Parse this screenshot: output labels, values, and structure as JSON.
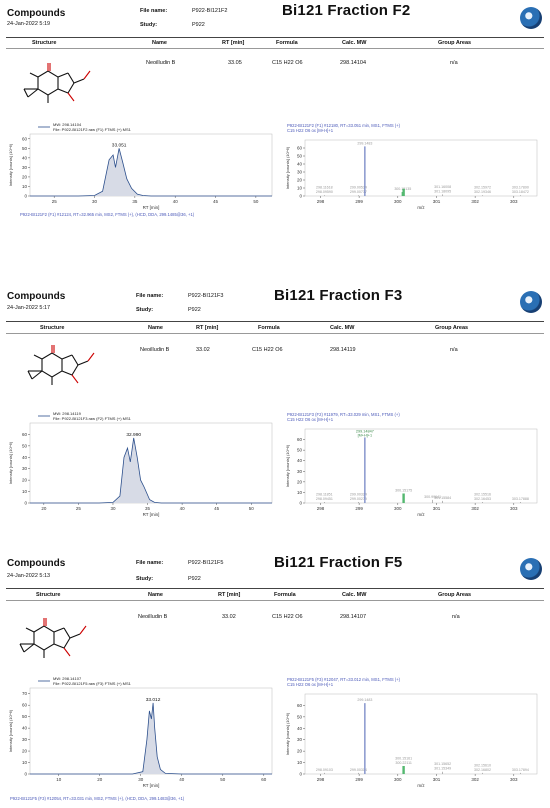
{
  "header_labels": {
    "file_name": "File name:",
    "study": "Study:"
  },
  "table_headers": [
    "Structure",
    "Name",
    "RT [min]",
    "Formula",
    "Calc. MW",
    "Group Areas"
  ],
  "panels": [
    {
      "title": "Compounds",
      "date": "24-Jan-2022 5:19",
      "file_name": "P922-BI121F2",
      "study": "P922",
      "fraction": "Bi121 Fraction F2",
      "row": {
        "name": "Neoilludin B",
        "rt": "33.05",
        "formula": "C15 H22 O6",
        "mw": "298.14104",
        "group_areas": "n/a"
      }
    },
    {
      "title": "Compounds",
      "date": "24-Jan-2022 5:17",
      "file_name": "P922-BI121F3",
      "study": "P922",
      "fraction": "Bi121 Fraction F3",
      "row": {
        "name": "Neoilludin B",
        "rt": "33.02",
        "formula": "C15 H22 O6",
        "mw": "298.14119",
        "group_areas": "n/a"
      }
    },
    {
      "title": "Compounds",
      "date": "24-Jan-2022 5:13",
      "file_name": "P922-BI121F5",
      "study": "P922",
      "fraction": "Bi121 Fraction F5",
      "row": {
        "name": "Neoilludin B",
        "rt": "33.02",
        "formula": "C15 H22 O6",
        "mw": "298.14107",
        "group_areas": "n/a"
      }
    }
  ],
  "chart_data": [
    {
      "type": "line",
      "panel": "F2 chromatogram",
      "legend": [
        "MW: 298.14104",
        "File: P922-BI121F2.raw (F1) FTMS (+) MS1"
      ],
      "peak_label": "33.051",
      "xlabel": "RT [min]",
      "ylabel": "Intensity [counts] (10^6)",
      "xlim": [
        22,
        52
      ],
      "ylim": [
        0,
        65
      ],
      "xticks": [
        25,
        30,
        35,
        40,
        45,
        50
      ],
      "yticks": [
        0,
        10,
        20,
        30,
        40,
        50,
        60
      ],
      "x": [
        22,
        28,
        30,
        31,
        31.8,
        32.3,
        32.6,
        33.05,
        33.5,
        34,
        34.6,
        35.3,
        36,
        37,
        40,
        52
      ],
      "y": [
        0,
        0,
        0.5,
        5,
        38,
        43,
        30,
        50,
        35,
        18,
        8,
        2,
        0.5,
        0,
        0,
        0
      ],
      "footer": "P922-BI121F2 (F1) #12124, RT=32.965 min, MS2, FTMS (+), (HCD, DDA, 299.1485@36, +1)"
    },
    {
      "type": "bar",
      "panel": "F2 mass spectrum",
      "header": [
        "P922-BI121F2 (F1) #12180, RT=33.051 min, MS1, FTMS (+)",
        "C15 H22 O6 ox [M+H]+1"
      ],
      "xlabel": "m/z",
      "ylabel": "Intensity [counts] (10^6)",
      "xlim": [
        297.6,
        303.6
      ],
      "ylim": [
        0,
        70
      ],
      "xticks": [
        298,
        299,
        300,
        301,
        302,
        303
      ],
      "yticks": [
        0,
        10,
        20,
        30,
        40,
        50,
        60
      ],
      "peaks": [
        {
          "mz": 298.1,
          "i": 1,
          "label": "298.11618\n298.09590"
        },
        {
          "mz": 298.98,
          "i": 1,
          "label": "299.00534\n299.00737"
        },
        {
          "mz": 299.148,
          "i": 62,
          "label": "299.1483"
        },
        {
          "mz": 300.13,
          "i": 5,
          "label": "300.15135"
        },
        {
          "mz": 300.151,
          "i": 9,
          "label": ""
        },
        {
          "mz": 301.16,
          "i": 2,
          "label": "301.16008\n301.18095"
        },
        {
          "mz": 302.19,
          "i": 1,
          "label": "302.15972\n302.19346"
        },
        {
          "mz": 303.17,
          "i": 1,
          "label": "303.17890\n303.18472"
        }
      ]
    },
    {
      "type": "line",
      "panel": "F3 chromatogram",
      "legend": [
        "MW: 298.14119",
        "File: P922-BI121F3.raw (F2) FTMS (+) MS1"
      ],
      "peak_label": "32.990",
      "xlabel": "RT [min]",
      "ylabel": "Intensity [counts] (10^6)",
      "xlim": [
        18,
        53
      ],
      "ylim": [
        0,
        70
      ],
      "xticks": [
        20,
        25,
        30,
        35,
        40,
        45,
        50
      ],
      "yticks": [
        0,
        10,
        20,
        30,
        40,
        50,
        60
      ],
      "x": [
        18,
        28,
        30,
        31,
        31.6,
        32.1,
        32.5,
        33.0,
        33.5,
        34,
        34.5,
        35.3,
        36,
        37,
        40,
        53
      ],
      "y": [
        0,
        0,
        0.5,
        6,
        40,
        48,
        36,
        57,
        40,
        20,
        14,
        3,
        0.5,
        0,
        0,
        0
      ],
      "footer": ""
    },
    {
      "type": "bar",
      "panel": "F3 mass spectrum",
      "header": [
        "P922-BI121F3 (F2) #11979, RT=33.029 min, MS1, FTMS (+)",
        "C15 H22 O6 ox [M+H]+1"
      ],
      "peak_text": [
        "299.14847",
        "[M+H]+1"
      ],
      "xlabel": "m/z",
      "ylabel": "Intensity [counts] (10^6)",
      "xlim": [
        297.6,
        303.6
      ],
      "ylim": [
        0,
        70
      ],
      "xticks": [
        298,
        299,
        300,
        301,
        302,
        303
      ],
      "yticks": [
        0,
        10,
        20,
        30,
        40,
        50,
        60
      ],
      "peaks": [
        {
          "mz": 298.1,
          "i": 1,
          "label": "298.11851\n298.09451"
        },
        {
          "mz": 298.98,
          "i": 1,
          "label": "299.00324\n299.00279"
        },
        {
          "mz": 299.148,
          "i": 62,
          "label": ""
        },
        {
          "mz": 300.15,
          "i": 9,
          "label": "300.15175"
        },
        {
          "mz": 300.9,
          "i": 3,
          "label": "300.99641"
        },
        {
          "mz": 301.16,
          "i": 2,
          "label": "301.15584"
        },
        {
          "mz": 302.19,
          "i": 1,
          "label": "302.15516\n302.16453"
        },
        {
          "mz": 303.17,
          "i": 1,
          "label": "303.17888"
        }
      ]
    },
    {
      "type": "line",
      "panel": "F5 chromatogram",
      "legend": [
        "MW: 298.14107",
        "File: P922-BI121F5.raw (F3) FTMS (+) MS1"
      ],
      "peak_label": "33.012",
      "xlabel": "RT [min]",
      "ylabel": "Intensity [counts] (10^6)",
      "xlim": [
        3,
        62
      ],
      "ylim": [
        0,
        75
      ],
      "xticks": [
        10,
        20,
        30,
        40,
        50,
        60
      ],
      "yticks": [
        0,
        10,
        20,
        30,
        40,
        50,
        60,
        70
      ],
      "x": [
        3,
        28,
        30.5,
        31.5,
        32.1,
        32.6,
        33.0,
        33.4,
        34,
        34.8,
        36,
        40,
        62
      ],
      "y": [
        0,
        0,
        2,
        30,
        55,
        48,
        62,
        40,
        15,
        4,
        0.5,
        0,
        0
      ],
      "footer": "P922-BI121F5 (F3) #12054, RT=33.031 min, MS2, FTMS (+), (HCD, DDA, 299.1483@36, +1)"
    },
    {
      "type": "bar",
      "panel": "F5 mass spectrum",
      "header": [
        "P922-BI121F5 (F3) #12047, RT=33.012 min, MS1, FTMS (+)",
        "C15 H22 O6 ox [M+H]+1"
      ],
      "xlabel": "m/z",
      "ylabel": "Intensity [counts] (10^6)",
      "xlim": [
        297.6,
        303.6
      ],
      "ylim": [
        0,
        70
      ],
      "xticks": [
        298,
        299,
        300,
        301,
        302,
        303
      ],
      "yticks": [
        0,
        10,
        20,
        30,
        40,
        50,
        60
      ],
      "peaks": [
        {
          "mz": 298.1,
          "i": 1,
          "label": "298.09103"
        },
        {
          "mz": 298.98,
          "i": 1,
          "label": "299.00314"
        },
        {
          "mz": 299.148,
          "i": 62,
          "label": "299.1483"
        },
        {
          "mz": 300.15,
          "i": 7,
          "label": "300.15161\n300.22111"
        },
        {
          "mz": 301.16,
          "i": 2,
          "label": "301.15652\n301.15349"
        },
        {
          "mz": 302.19,
          "i": 1,
          "label": "302.15610\n302.16802"
        },
        {
          "mz": 303.17,
          "i": 1,
          "label": "303.17894"
        }
      ]
    }
  ]
}
